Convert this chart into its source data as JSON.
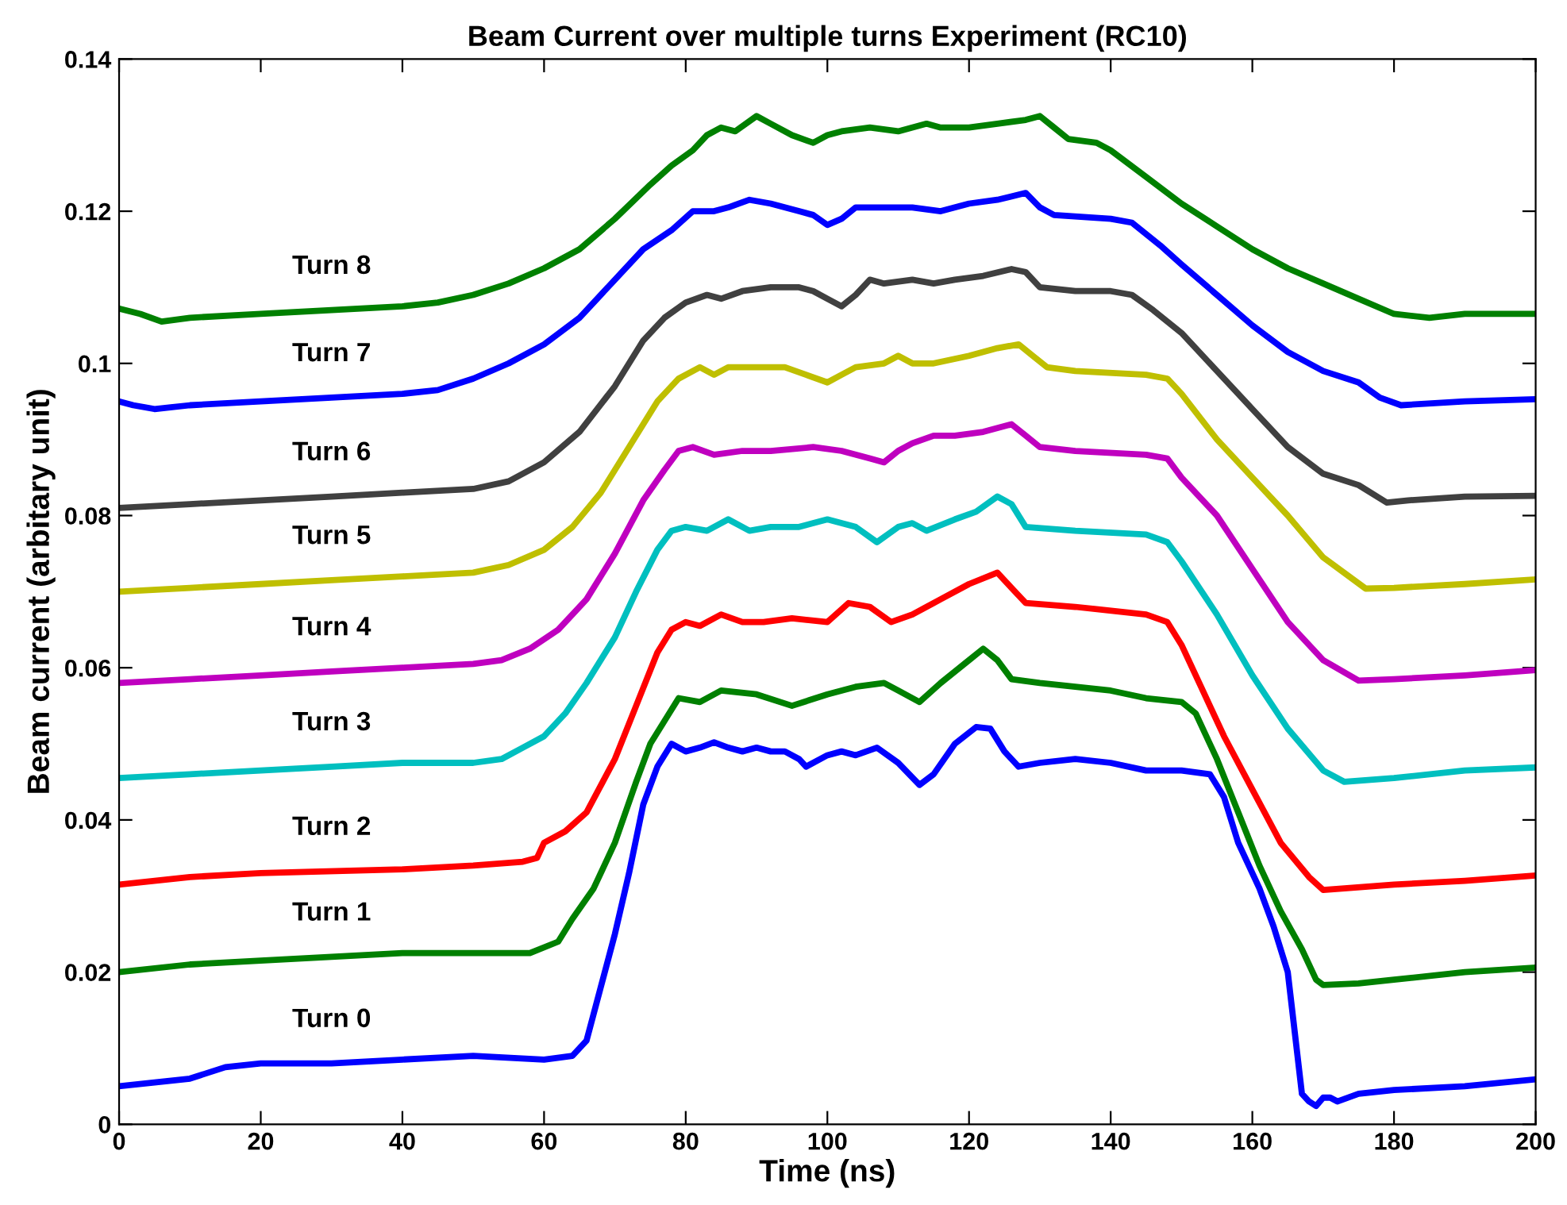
{
  "chart_data": {
    "type": "line",
    "title": "Beam Current over multiple turns Experiment (RC10)",
    "xlabel": "Time (ns)",
    "ylabel": "Beam current (arbitary unit)",
    "xlim": [
      0,
      200
    ],
    "xticks": [
      0,
      20,
      40,
      60,
      80,
      100,
      120,
      140,
      160,
      180,
      200
    ],
    "ylim": [
      0,
      0.14
    ],
    "yticks": [
      0,
      0.02,
      0.04,
      0.06,
      0.08,
      0.1,
      0.12,
      0.14
    ],
    "grid": false,
    "legend": false,
    "marker": "none",
    "line_style": "solid",
    "series": [
      {
        "name": "Turn 0",
        "color": "#0000ff",
        "x": [
          0,
          5,
          10,
          15,
          20,
          30,
          40,
          50,
          60,
          64,
          66,
          68,
          70,
          72,
          74,
          76,
          78,
          80,
          82,
          84,
          86,
          88,
          90,
          92,
          94,
          96,
          97,
          100,
          102,
          104,
          107,
          110,
          113,
          115,
          118,
          121,
          123,
          125,
          127,
          130,
          135,
          140,
          145,
          150,
          154,
          156,
          158,
          161,
          163,
          165,
          166,
          167,
          168,
          169,
          170,
          171,
          172,
          175,
          180,
          190,
          200
        ],
        "values": [
          0.005,
          0.0055,
          0.006,
          0.0075,
          0.008,
          0.008,
          0.0085,
          0.009,
          0.0085,
          0.009,
          0.011,
          0.018,
          0.025,
          0.033,
          0.042,
          0.047,
          0.05,
          0.049,
          0.0495,
          0.0502,
          0.0495,
          0.049,
          0.0495,
          0.049,
          0.049,
          0.048,
          0.047,
          0.0485,
          0.049,
          0.0485,
          0.0495,
          0.0475,
          0.0446,
          0.046,
          0.05,
          0.0522,
          0.052,
          0.049,
          0.047,
          0.0475,
          0.048,
          0.0475,
          0.0465,
          0.0465,
          0.046,
          0.043,
          0.037,
          0.031,
          0.026,
          0.02,
          0.012,
          0.004,
          0.003,
          0.0024,
          0.0035,
          0.0035,
          0.003,
          0.004,
          0.0045,
          0.005,
          0.0059
        ]
      },
      {
        "name": "Turn 1",
        "color": "#008000",
        "x": [
          0,
          10,
          20,
          30,
          40,
          50,
          58,
          62,
          64,
          67,
          70,
          73,
          75,
          77,
          79,
          82,
          85,
          90,
          95,
          100,
          104,
          108,
          110,
          113,
          116,
          120,
          122,
          124,
          126,
          130,
          140,
          145,
          150,
          152,
          155,
          158,
          161,
          164,
          167,
          169,
          170,
          175,
          180,
          190,
          200
        ],
        "values": [
          0.02,
          0.021,
          0.0215,
          0.022,
          0.0225,
          0.0225,
          0.0225,
          0.024,
          0.027,
          0.031,
          0.037,
          0.045,
          0.05,
          0.053,
          0.056,
          0.0555,
          0.057,
          0.0565,
          0.055,
          0.0565,
          0.0575,
          0.058,
          0.057,
          0.0555,
          0.058,
          0.061,
          0.0625,
          0.061,
          0.0585,
          0.058,
          0.057,
          0.056,
          0.0555,
          0.054,
          0.048,
          0.041,
          0.034,
          0.028,
          0.023,
          0.019,
          0.0183,
          0.0185,
          0.019,
          0.02,
          0.0206
        ]
      },
      {
        "name": "Turn 2",
        "color": "#ff0000",
        "x": [
          0,
          10,
          20,
          40,
          50,
          57,
          59,
          60,
          63,
          66,
          70,
          73,
          76,
          78,
          80,
          82,
          85,
          88,
          91,
          95,
          100,
          103,
          106,
          109,
          112,
          116,
          120,
          124,
          126,
          128,
          135,
          145,
          148,
          150,
          153,
          156,
          160,
          164,
          168,
          170,
          173,
          180,
          190,
          200
        ],
        "values": [
          0.0315,
          0.0325,
          0.033,
          0.0335,
          0.034,
          0.0345,
          0.035,
          0.037,
          0.0385,
          0.041,
          0.048,
          0.055,
          0.062,
          0.065,
          0.066,
          0.0655,
          0.067,
          0.066,
          0.066,
          0.0665,
          0.066,
          0.0685,
          0.068,
          0.066,
          0.067,
          0.069,
          0.071,
          0.0725,
          0.0705,
          0.0685,
          0.068,
          0.067,
          0.066,
          0.063,
          0.057,
          0.051,
          0.044,
          0.037,
          0.0325,
          0.0308,
          0.031,
          0.0315,
          0.032,
          0.0327
        ]
      },
      {
        "name": "Turn 3",
        "color": "#00bfbf",
        "x": [
          0,
          10,
          20,
          30,
          40,
          50,
          54,
          57,
          60,
          63,
          66,
          70,
          73,
          76,
          78,
          80,
          83,
          86,
          89,
          92,
          96,
          100,
          104,
          107,
          110,
          112,
          114,
          118,
          121,
          124,
          126,
          128,
          135,
          145,
          148,
          150,
          155,
          160,
          165,
          170,
          173,
          180,
          190,
          200
        ],
        "values": [
          0.0455,
          0.046,
          0.0465,
          0.047,
          0.0475,
          0.0475,
          0.048,
          0.0495,
          0.051,
          0.054,
          0.058,
          0.064,
          0.07,
          0.0755,
          0.078,
          0.0785,
          0.078,
          0.0795,
          0.078,
          0.0785,
          0.0785,
          0.0795,
          0.0785,
          0.0765,
          0.0785,
          0.079,
          0.078,
          0.0795,
          0.0805,
          0.0825,
          0.0815,
          0.0785,
          0.078,
          0.0775,
          0.0765,
          0.074,
          0.067,
          0.059,
          0.052,
          0.0465,
          0.045,
          0.0455,
          0.0465,
          0.0469
        ]
      },
      {
        "name": "Turn 4",
        "color": "#bf00bf",
        "x": [
          0,
          10,
          20,
          30,
          40,
          50,
          54,
          58,
          62,
          66,
          70,
          74,
          77,
          79,
          81,
          84,
          88,
          92,
          98,
          102,
          106,
          108,
          110,
          112,
          115,
          118,
          122,
          126,
          128,
          130,
          135,
          145,
          148,
          150,
          155,
          160,
          165,
          170,
          175,
          180,
          190,
          200
        ],
        "values": [
          0.058,
          0.0585,
          0.059,
          0.0595,
          0.06,
          0.0605,
          0.061,
          0.0625,
          0.065,
          0.069,
          0.075,
          0.082,
          0.086,
          0.0885,
          0.089,
          0.088,
          0.0885,
          0.0885,
          0.089,
          0.0885,
          0.0875,
          0.087,
          0.0885,
          0.0895,
          0.0905,
          0.0905,
          0.091,
          0.092,
          0.0905,
          0.089,
          0.0885,
          0.088,
          0.0875,
          0.085,
          0.08,
          0.073,
          0.066,
          0.061,
          0.0583,
          0.0585,
          0.059,
          0.0597
        ]
      },
      {
        "name": "Turn 5",
        "color": "#bfbf00",
        "x": [
          0,
          10,
          20,
          30,
          40,
          50,
          55,
          60,
          64,
          68,
          72,
          76,
          79,
          82,
          84,
          86,
          90,
          94,
          97,
          100,
          102,
          104,
          108,
          110,
          112,
          115,
          120,
          124,
          127,
          129,
          131,
          135,
          145,
          148,
          150,
          155,
          160,
          165,
          170,
          176,
          180,
          190,
          200
        ],
        "values": [
          0.07,
          0.0705,
          0.071,
          0.0715,
          0.072,
          0.0725,
          0.0735,
          0.0755,
          0.0785,
          0.083,
          0.089,
          0.095,
          0.098,
          0.0995,
          0.0985,
          0.0995,
          0.0995,
          0.0995,
          0.0985,
          0.0975,
          0.0985,
          0.0995,
          0.1,
          0.101,
          0.1,
          0.1,
          0.101,
          0.102,
          0.1025,
          0.101,
          0.0995,
          0.099,
          0.0985,
          0.098,
          0.096,
          0.09,
          0.085,
          0.08,
          0.0745,
          0.0704,
          0.0705,
          0.071,
          0.0716
        ]
      },
      {
        "name": "Turn 6",
        "color": "#404040",
        "x": [
          0,
          10,
          20,
          30,
          40,
          50,
          55,
          60,
          65,
          70,
          74,
          77,
          80,
          83,
          85,
          88,
          92,
          96,
          98,
          100,
          102,
          104,
          106,
          108,
          112,
          115,
          118,
          122,
          126,
          128,
          130,
          135,
          140,
          143,
          146,
          150,
          155,
          160,
          165,
          170,
          175,
          179,
          182,
          190,
          200
        ],
        "values": [
          0.081,
          0.0815,
          0.082,
          0.0825,
          0.083,
          0.0835,
          0.0845,
          0.087,
          0.091,
          0.097,
          0.103,
          0.106,
          0.108,
          0.109,
          0.1085,
          0.1095,
          0.11,
          0.11,
          0.1095,
          0.1085,
          0.1075,
          0.109,
          0.111,
          0.1105,
          0.111,
          0.1105,
          0.111,
          0.1115,
          0.1124,
          0.112,
          0.11,
          0.1095,
          0.1095,
          0.109,
          0.107,
          0.104,
          0.099,
          0.094,
          0.089,
          0.0855,
          0.084,
          0.0817,
          0.082,
          0.0825,
          0.0826
        ]
      },
      {
        "name": "Turn 7",
        "color": "#0000ff",
        "x": [
          0,
          2,
          5,
          10,
          20,
          30,
          40,
          45,
          50,
          55,
          60,
          65,
          70,
          74,
          78,
          81,
          84,
          86,
          89,
          92,
          96,
          98,
          100,
          102,
          104,
          108,
          112,
          116,
          120,
          124,
          128,
          130,
          132,
          140,
          143,
          147,
          150,
          155,
          160,
          165,
          170,
          175,
          178,
          181,
          190,
          200
        ],
        "values": [
          0.095,
          0.0945,
          0.094,
          0.0945,
          0.095,
          0.0955,
          0.096,
          0.0965,
          0.098,
          0.1,
          0.1025,
          0.106,
          0.111,
          0.115,
          0.1175,
          0.12,
          0.12,
          0.1205,
          0.1215,
          0.121,
          0.12,
          0.1195,
          0.1182,
          0.119,
          0.1205,
          0.1205,
          0.1205,
          0.12,
          0.121,
          0.1215,
          0.1224,
          0.1205,
          0.1195,
          0.119,
          0.1185,
          0.1155,
          0.113,
          0.109,
          0.105,
          0.1015,
          0.099,
          0.0975,
          0.0955,
          0.0945,
          0.095,
          0.0953
        ]
      },
      {
        "name": "Turn 8",
        "color": "#008000",
        "x": [
          0,
          3,
          6,
          10,
          20,
          30,
          40,
          45,
          50,
          55,
          60,
          65,
          70,
          75,
          78,
          81,
          83,
          85,
          87,
          90,
          92,
          95,
          98,
          100,
          102,
          106,
          110,
          114,
          116,
          120,
          124,
          128,
          130,
          132,
          134,
          138,
          140,
          145,
          150,
          155,
          160,
          165,
          170,
          175,
          180,
          185,
          190,
          200
        ],
        "values": [
          0.1072,
          0.1065,
          0.1055,
          0.106,
          0.1065,
          0.107,
          0.1075,
          0.108,
          0.109,
          0.1105,
          0.1125,
          0.115,
          0.119,
          0.1235,
          0.126,
          0.128,
          0.13,
          0.131,
          0.1305,
          0.1325,
          0.1315,
          0.13,
          0.129,
          0.13,
          0.1305,
          0.131,
          0.1305,
          0.1315,
          0.131,
          0.131,
          0.1315,
          0.132,
          0.1325,
          0.131,
          0.1295,
          0.129,
          0.128,
          0.1245,
          0.121,
          0.118,
          0.115,
          0.1125,
          0.1105,
          0.1085,
          0.1065,
          0.106,
          0.1065,
          0.1065
        ]
      }
    ]
  }
}
